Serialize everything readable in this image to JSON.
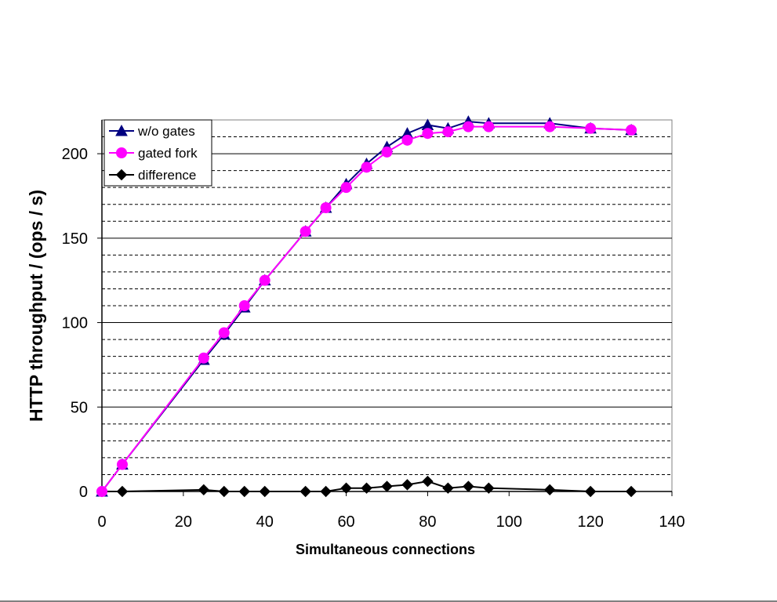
{
  "chart_data": {
    "type": "line",
    "title": "",
    "xlabel": "Simultaneous connections",
    "ylabel": "HTTP throughput / (ops / s)",
    "xlim": [
      0,
      140
    ],
    "ylim": [
      0,
      220
    ],
    "x_ticks": [
      0,
      20,
      40,
      60,
      80,
      100,
      120,
      140
    ],
    "y_ticks": [
      0,
      50,
      100,
      150,
      200
    ],
    "major_gridlines": [
      50,
      100,
      150,
      200
    ],
    "minor_gridlines": [
      10,
      20,
      30,
      40,
      60,
      70,
      80,
      90,
      110,
      120,
      130,
      140,
      160,
      170,
      180,
      190,
      210
    ],
    "legend_position": "top-left",
    "series": [
      {
        "name": "w/o gates",
        "color": "#000080",
        "marker": "triangle",
        "x": [
          0,
          5,
          25,
          30,
          35,
          40,
          50,
          55,
          60,
          65,
          70,
          75,
          80,
          85,
          90,
          95,
          110,
          120,
          130
        ],
        "y": [
          0,
          16,
          78,
          93,
          109,
          125,
          154,
          168,
          182,
          194,
          204,
          212,
          217,
          215,
          219,
          218,
          218,
          215,
          214
        ]
      },
      {
        "name": "gated fork",
        "color": "#FF00FF",
        "marker": "circle",
        "x": [
          0,
          5,
          25,
          30,
          35,
          40,
          50,
          55,
          60,
          65,
          70,
          75,
          80,
          85,
          90,
          95,
          110,
          120,
          130
        ],
        "y": [
          0,
          16,
          79,
          94,
          110,
          125,
          154,
          168,
          180,
          192,
          201,
          208,
          212,
          213,
          216,
          216,
          216,
          215,
          214
        ]
      },
      {
        "name": "difference",
        "color": "#000000",
        "marker": "diamond",
        "x": [
          0,
          5,
          25,
          30,
          35,
          40,
          50,
          55,
          60,
          65,
          70,
          75,
          80,
          85,
          90,
          95,
          110,
          120,
          130
        ],
        "y": [
          0,
          0,
          1,
          0,
          0,
          0,
          0,
          0,
          2,
          2,
          3,
          4,
          6,
          2,
          3,
          2,
          1,
          0,
          0
        ]
      }
    ]
  }
}
